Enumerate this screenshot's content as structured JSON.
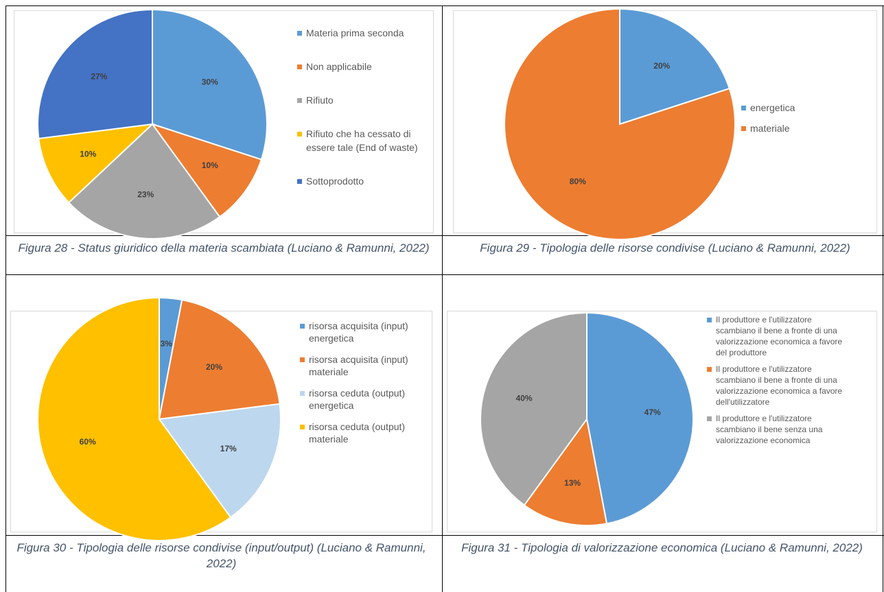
{
  "chart_data": [
    {
      "type": "pie",
      "categories": [
        "Materia prima seconda",
        "Non applicabile",
        "Rifiuto",
        "Rifiuto che ha cessato di essere tale (End of waste)",
        "Sottoprodotto"
      ],
      "values": [
        30,
        10,
        23,
        10,
        27
      ],
      "value_labels": [
        "30%",
        "10%",
        "23%",
        "10%",
        "27%"
      ],
      "colors": [
        "#5b9bd5",
        "#ed7d31",
        "#a5a5a5",
        "#ffc000",
        "#4472c4"
      ],
      "caption": "Figura 28 - Status giuridico della materia scambiata (Luciano & Ramunni, 2022)"
    },
    {
      "type": "pie",
      "categories": [
        "energetica",
        "materiale"
      ],
      "values": [
        20,
        80
      ],
      "value_labels": [
        "20%",
        "80%"
      ],
      "colors": [
        "#5b9bd5",
        "#ed7d31"
      ],
      "caption": "Figura 29 - Tipologia delle risorse condivise (Luciano & Ramunni, 2022)"
    },
    {
      "type": "pie",
      "categories": [
        "risorsa acquisita (input) energetica",
        "risorsa acquisita (input) materiale",
        "risorsa ceduta (output) energetica",
        "risorsa ceduta (output) materiale"
      ],
      "values": [
        3,
        20,
        17,
        60
      ],
      "value_labels": [
        "3%",
        "20%",
        "17%",
        "60%"
      ],
      "colors": [
        "#5b9bd5",
        "#ed7d31",
        "#bdd7ee",
        "#ffc000"
      ],
      "caption": "Figura 30 - Tipologia delle risorse condivise (input/output) (Luciano & Ramunni, 2022)"
    },
    {
      "type": "pie",
      "categories": [
        "Il produttore e l'utilizzatore scambiano il bene a fronte di una valorizzazione economica a favore del produttore",
        "Il produttore e l'utilizzatore scambiano il bene a fronte di una valorizzazione economica a favore dell'utilizzatore",
        "Il produttore e l'utilizzatore scambiano il bene senza una valorizzazione economica"
      ],
      "values": [
        47,
        13,
        40
      ],
      "value_labels": [
        "47%",
        "13%",
        "40%"
      ],
      "colors": [
        "#5b9bd5",
        "#ed7d31",
        "#a5a5a5"
      ],
      "caption": "Figura 31 - Tipologia di valorizzazione economica (Luciano & Ramunni, 2022)"
    }
  ]
}
